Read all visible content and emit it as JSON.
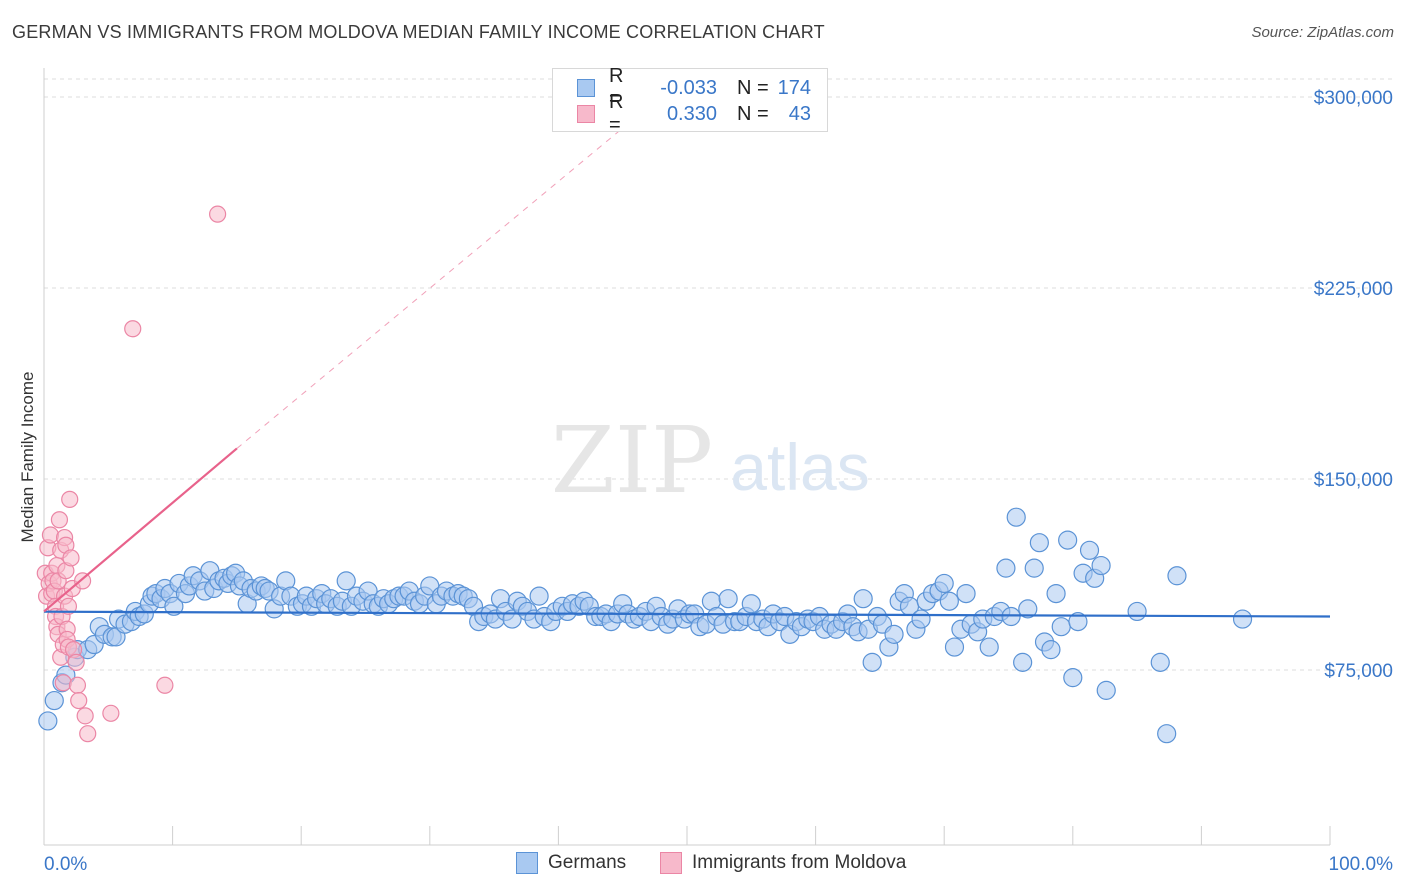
{
  "title": "GERMAN VS IMMIGRANTS FROM MOLDOVA MEDIAN FAMILY INCOME CORRELATION CHART",
  "source": "Source: ZipAtlas.com",
  "watermark": {
    "zip": "ZIP",
    "atlas": "atlas"
  },
  "colors": {
    "blue_fill": "#a9c9f1",
    "blue_stroke": "#5b93d6",
    "blue_line": "#2f6fc9",
    "pink_fill": "#f7b9cb",
    "pink_stroke": "#eb86a5",
    "pink_line": "#e8628b",
    "axis_text": "#3a77c8",
    "grid": "#dcdcdc"
  },
  "legend": {
    "rows": [
      {
        "r_label": "R =",
        "r_value": "-0.033",
        "n_label": "N =",
        "n_value": "174"
      },
      {
        "r_label": "R =",
        "r_value": "0.330",
        "n_label": "N =",
        "n_value": "43"
      }
    ]
  },
  "bottom_legend": {
    "series1": "Germans",
    "series2": "Immigrants from Moldova"
  },
  "chart_data": {
    "type": "scatter",
    "title": "GERMAN VS IMMIGRANTS FROM MOLDOVA MEDIAN FAMILY INCOME CORRELATION CHART",
    "xlabel": "",
    "ylabel": "Median Family Income",
    "xlim": [
      0,
      100
    ],
    "ylim": [
      0,
      310000
    ],
    "x_tick_labels": [
      "0.0%",
      "100.0%"
    ],
    "y_ticks": [
      75000,
      150000,
      225000,
      300000
    ],
    "y_tick_labels": [
      "$75,000",
      "$150,000",
      "$225,000",
      "$300,000"
    ],
    "grid": true,
    "series": [
      {
        "name": "Germans",
        "r": -0.033,
        "n": 174,
        "trend": {
          "x": [
            0,
            100
          ],
          "y": [
            97900,
            96000
          ]
        },
        "points": [
          [
            0.3,
            55000
          ],
          [
            0.8,
            63000
          ],
          [
            1.4,
            70000
          ],
          [
            1.7,
            73000
          ],
          [
            2.4,
            80000
          ],
          [
            2.6,
            83000
          ],
          [
            3.4,
            83000
          ],
          [
            3.9,
            85000
          ],
          [
            4.3,
            92000
          ],
          [
            4.7,
            89000
          ],
          [
            5.3,
            88000
          ],
          [
            5.6,
            88000
          ],
          [
            5.8,
            95000
          ],
          [
            6.3,
            93000
          ],
          [
            6.8,
            94000
          ],
          [
            7.1,
            98000
          ],
          [
            7.4,
            96000
          ],
          [
            7.8,
            97000
          ],
          [
            8.2,
            101000
          ],
          [
            8.4,
            104000
          ],
          [
            8.7,
            105000
          ],
          [
            9.1,
            103000
          ],
          [
            9.4,
            107000
          ],
          [
            9.8,
            105000
          ],
          [
            10.1,
            100000
          ],
          [
            10.5,
            109000
          ],
          [
            11.0,
            105000
          ],
          [
            11.3,
            108000
          ],
          [
            11.6,
            112000
          ],
          [
            12.1,
            110000
          ],
          [
            12.5,
            106000
          ],
          [
            12.9,
            114000
          ],
          [
            13.2,
            107000
          ],
          [
            13.6,
            110000
          ],
          [
            14.0,
            111000
          ],
          [
            14.3,
            109000
          ],
          [
            14.6,
            112000
          ],
          [
            14.9,
            113000
          ],
          [
            15.2,
            108000
          ],
          [
            15.5,
            110000
          ],
          [
            15.8,
            101000
          ],
          [
            16.1,
            107000
          ],
          [
            16.5,
            106000
          ],
          [
            16.9,
            108000
          ],
          [
            17.2,
            107000
          ],
          [
            17.5,
            106000
          ],
          [
            17.9,
            99000
          ],
          [
            18.4,
            104000
          ],
          [
            18.8,
            110000
          ],
          [
            19.2,
            104000
          ],
          [
            19.7,
            100000
          ],
          [
            20.1,
            101000
          ],
          [
            20.4,
            104000
          ],
          [
            20.8,
            100000
          ],
          [
            21.2,
            103000
          ],
          [
            21.6,
            105000
          ],
          [
            21.9,
            101000
          ],
          [
            22.3,
            103000
          ],
          [
            22.8,
            100000
          ],
          [
            23.2,
            102000
          ],
          [
            23.5,
            110000
          ],
          [
            23.9,
            100000
          ],
          [
            24.3,
            104000
          ],
          [
            24.8,
            102000
          ],
          [
            25.2,
            106000
          ],
          [
            25.6,
            101000
          ],
          [
            26.0,
            100000
          ],
          [
            26.4,
            103000
          ],
          [
            26.8,
            101000
          ],
          [
            27.2,
            103000
          ],
          [
            27.6,
            104000
          ],
          [
            28.0,
            104000
          ],
          [
            28.4,
            106000
          ],
          [
            28.8,
            102000
          ],
          [
            29.2,
            101000
          ],
          [
            29.6,
            104000
          ],
          [
            30.0,
            108000
          ],
          [
            30.5,
            101000
          ],
          [
            30.9,
            104000
          ],
          [
            31.3,
            106000
          ],
          [
            31.8,
            104000
          ],
          [
            32.2,
            105000
          ],
          [
            32.6,
            104000
          ],
          [
            33.0,
            103000
          ],
          [
            33.4,
            100000
          ],
          [
            33.8,
            94000
          ],
          [
            34.2,
            96000
          ],
          [
            34.7,
            97000
          ],
          [
            35.1,
            95000
          ],
          [
            35.5,
            103000
          ],
          [
            35.9,
            98000
          ],
          [
            36.4,
            95000
          ],
          [
            36.8,
            102000
          ],
          [
            37.2,
            100000
          ],
          [
            37.6,
            98000
          ],
          [
            38.1,
            95000
          ],
          [
            38.5,
            104000
          ],
          [
            38.9,
            96000
          ],
          [
            39.4,
            94000
          ],
          [
            39.8,
            98000
          ],
          [
            40.3,
            100000
          ],
          [
            40.7,
            98000
          ],
          [
            41.1,
            101000
          ],
          [
            41.6,
            100000
          ],
          [
            42.0,
            102000
          ],
          [
            42.4,
            100000
          ],
          [
            42.9,
            96000
          ],
          [
            43.3,
            96000
          ],
          [
            43.7,
            97000
          ],
          [
            44.1,
            94000
          ],
          [
            44.6,
            97000
          ],
          [
            45.0,
            101000
          ],
          [
            45.4,
            97000
          ],
          [
            45.9,
            95000
          ],
          [
            46.3,
            96000
          ],
          [
            46.8,
            98000
          ],
          [
            47.2,
            94000
          ],
          [
            47.6,
            100000
          ],
          [
            48.0,
            96000
          ],
          [
            48.5,
            93000
          ],
          [
            48.9,
            95000
          ],
          [
            49.3,
            99000
          ],
          [
            49.8,
            95000
          ],
          [
            50.2,
            97000
          ],
          [
            50.6,
            97000
          ],
          [
            51.0,
            92000
          ],
          [
            51.5,
            93000
          ],
          [
            51.9,
            102000
          ],
          [
            52.3,
            96000
          ],
          [
            52.8,
            93000
          ],
          [
            53.2,
            103000
          ],
          [
            53.7,
            94000
          ],
          [
            54.1,
            94000
          ],
          [
            54.6,
            96000
          ],
          [
            55.0,
            101000
          ],
          [
            55.4,
            94000
          ],
          [
            55.9,
            95000
          ],
          [
            56.3,
            92000
          ],
          [
            56.7,
            97000
          ],
          [
            57.2,
            94000
          ],
          [
            57.6,
            96000
          ],
          [
            58.0,
            89000
          ],
          [
            58.5,
            94000
          ],
          [
            58.9,
            92000
          ],
          [
            59.4,
            95000
          ],
          [
            59.8,
            94000
          ],
          [
            60.3,
            96000
          ],
          [
            60.7,
            91000
          ],
          [
            61.2,
            93000
          ],
          [
            61.6,
            91000
          ],
          [
            62.1,
            94000
          ],
          [
            62.5,
            97000
          ],
          [
            62.9,
            92000
          ],
          [
            63.3,
            90000
          ],
          [
            63.7,
            103000
          ],
          [
            64.1,
            91000
          ],
          [
            64.4,
            78000
          ],
          [
            64.8,
            96000
          ],
          [
            65.2,
            93000
          ],
          [
            65.7,
            84000
          ],
          [
            66.1,
            89000
          ],
          [
            66.5,
            102000
          ],
          [
            66.9,
            105000
          ],
          [
            67.3,
            100000
          ],
          [
            67.8,
            91000
          ],
          [
            68.2,
            95000
          ],
          [
            68.6,
            102000
          ],
          [
            69.1,
            105000
          ],
          [
            69.6,
            106000
          ],
          [
            70.0,
            109000
          ],
          [
            70.4,
            102000
          ],
          [
            70.8,
            84000
          ],
          [
            71.3,
            91000
          ],
          [
            71.7,
            105000
          ],
          [
            72.1,
            93000
          ],
          [
            72.6,
            90000
          ],
          [
            73.0,
            95000
          ],
          [
            73.5,
            84000
          ],
          [
            73.9,
            96000
          ],
          [
            74.4,
            98000
          ],
          [
            74.8,
            115000
          ],
          [
            75.2,
            96000
          ],
          [
            75.6,
            135000
          ],
          [
            76.1,
            78000
          ],
          [
            76.5,
            99000
          ],
          [
            77.0,
            115000
          ],
          [
            77.4,
            125000
          ],
          [
            77.8,
            86000
          ],
          [
            78.3,
            83000
          ],
          [
            78.7,
            105000
          ],
          [
            79.1,
            92000
          ],
          [
            79.6,
            126000
          ],
          [
            80.0,
            72000
          ],
          [
            80.4,
            94000
          ],
          [
            80.8,
            113000
          ],
          [
            81.3,
            122000
          ],
          [
            81.7,
            111000
          ],
          [
            82.2,
            116000
          ],
          [
            82.6,
            67000
          ],
          [
            85.0,
            98000
          ],
          [
            86.8,
            78000
          ],
          [
            87.3,
            50000
          ],
          [
            88.1,
            112000
          ],
          [
            93.2,
            95000
          ]
        ]
      },
      {
        "name": "Immigrants from Moldova",
        "r": 0.33,
        "n": 43,
        "trend": {
          "x": [
            0,
            15
          ],
          "y": [
            98000,
            162000
          ],
          "dashed_to": {
            "x": [
              15,
              46
            ],
            "y": [
              162000,
              292000
            ]
          }
        },
        "points": [
          [
            0.1,
            113000
          ],
          [
            0.2,
            104000
          ],
          [
            0.3,
            123000
          ],
          [
            0.4,
            109000
          ],
          [
            0.5,
            128000
          ],
          [
            0.6,
            113000
          ],
          [
            0.6,
            105000
          ],
          [
            0.7,
            110000
          ],
          [
            0.8,
            106000
          ],
          [
            0.9,
            100000
          ],
          [
            0.9,
            96000
          ],
          [
            1.0,
            116000
          ],
          [
            1.0,
            92000
          ],
          [
            1.1,
            110000
          ],
          [
            1.1,
            89000
          ],
          [
            1.2,
            134000
          ],
          [
            1.3,
            122000
          ],
          [
            1.3,
            80000
          ],
          [
            1.4,
            96000
          ],
          [
            1.5,
            85000
          ],
          [
            1.5,
            70000
          ],
          [
            1.6,
            127000
          ],
          [
            1.6,
            104000
          ],
          [
            1.7,
            124000
          ],
          [
            1.7,
            114000
          ],
          [
            1.8,
            91000
          ],
          [
            1.8,
            87000
          ],
          [
            1.9,
            100000
          ],
          [
            1.9,
            84000
          ],
          [
            2.0,
            142000
          ],
          [
            2.1,
            119000
          ],
          [
            2.2,
            107000
          ],
          [
            2.3,
            83000
          ],
          [
            2.5,
            78000
          ],
          [
            2.6,
            69000
          ],
          [
            2.7,
            63000
          ],
          [
            3.0,
            110000
          ],
          [
            3.2,
            57000
          ],
          [
            3.4,
            50000
          ],
          [
            5.2,
            58000
          ],
          [
            6.9,
            209000
          ],
          [
            9.4,
            69000
          ],
          [
            13.5,
            254000
          ]
        ]
      }
    ]
  }
}
